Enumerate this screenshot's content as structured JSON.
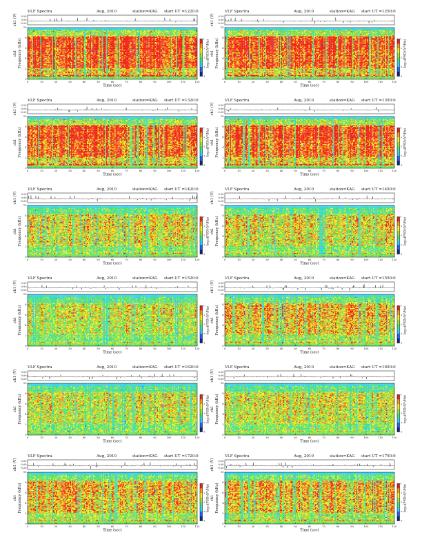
{
  "chart_data": {
    "type": "heatmap",
    "layout": {
      "rows": 6,
      "cols": 2
    },
    "common": {
      "title_left": "VLF Spectra",
      "date": "Aug, 2010",
      "station": "station=KAG",
      "start_prefix": "start  UT =",
      "xlabel": "Time  (sec)",
      "xticks": [
        0,
        10,
        20,
        30,
        40,
        50,
        60,
        70,
        80,
        90,
        100,
        110,
        120
      ],
      "xlim": [
        0,
        120
      ],
      "ylabel_freq": "Frequency  (kHz)",
      "ylabel_ch": "ch1",
      "yticks_freq": [
        0,
        2,
        4,
        6,
        8,
        10
      ],
      "ylim_freq": [
        0,
        10
      ],
      "ylabel_wave": "ch1 (V)",
      "yticks_wave": [
        "0.20",
        "0.00",
        "-0.20"
      ],
      "colorbar_label": "log₁₀(PSD)(V²/Hz)",
      "colorbar_ticks": [
        "0",
        "-1",
        "-2",
        "-3",
        "-4"
      ],
      "colormap": [
        "#0a2a8a",
        "#1e66ff",
        "#2bd0ff",
        "#44e27a",
        "#9de332",
        "#f7f21c",
        "#f79a14",
        "#ee2218"
      ]
    },
    "panels": [
      {
        "start": "1220:0",
        "intensity": 0.85
      },
      {
        "start": "1250:0",
        "intensity": 0.85
      },
      {
        "start": "1320:0",
        "intensity": 0.82
      },
      {
        "start": "1350:0",
        "intensity": 0.82
      },
      {
        "start": "1420:0",
        "intensity": 0.55
      },
      {
        "start": "1450:0",
        "intensity": 0.55
      },
      {
        "start": "1520:0",
        "intensity": 0.5
      },
      {
        "start": "1550:0",
        "intensity": 0.62
      },
      {
        "start": "1620:0",
        "intensity": 0.5
      },
      {
        "start": "1650:0",
        "intensity": 0.52
      },
      {
        "start": "1720:0",
        "intensity": 0.62
      },
      {
        "start": "1750:0",
        "intensity": 0.65
      }
    ]
  }
}
